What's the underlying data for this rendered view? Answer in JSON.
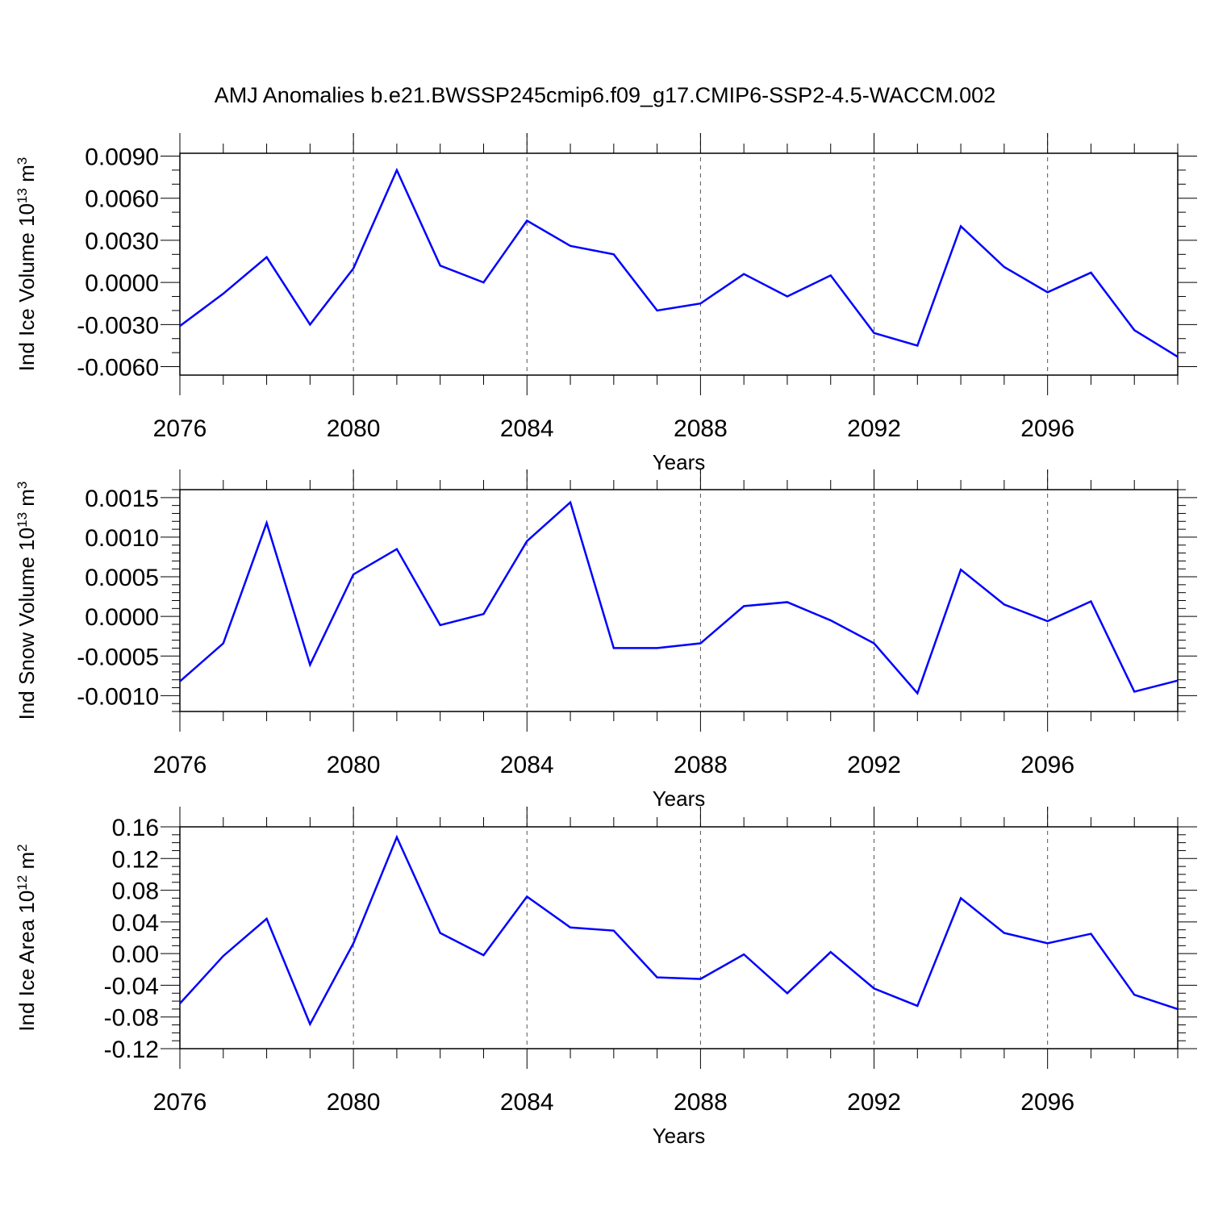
{
  "title": "AMJ Anomalies b.e21.BWSSP245cmip6.f09_g17.CMIP6-SSP2-4.5-WACCM.002",
  "colors": {
    "line": "#0000ff",
    "axis": "#000000",
    "grid": "#555555"
  },
  "chart_data": [
    {
      "type": "line",
      "ylabel": "Ind Ice Volume 10",
      "ylabel_exp": "13",
      "ylabel_unit": " m",
      "ylabel_unit_exp": "3",
      "xlabel": "Years",
      "xlim": [
        2076,
        2099
      ],
      "ylim": [
        -0.0066,
        0.0092
      ],
      "yticks": [
        -0.006,
        -0.003,
        0.0,
        0.003,
        0.006,
        0.009
      ],
      "ytick_labels": [
        "-0.0060",
        "-0.0030",
        "0.0000",
        "0.0030",
        "0.0060",
        "0.0090"
      ],
      "yminor_step": 0.001,
      "xticks": [
        2076,
        2080,
        2084,
        2088,
        2092,
        2096
      ],
      "xtick_labels": [
        "2076",
        "2080",
        "2084",
        "2088",
        "2092",
        "2096"
      ],
      "x": [
        2076,
        2077,
        2078,
        2079,
        2080,
        2081,
        2082,
        2083,
        2084,
        2085,
        2086,
        2087,
        2088,
        2089,
        2090,
        2091,
        2092,
        2093,
        2094,
        2095,
        2096,
        2097,
        2098,
        2099
      ],
      "y": [
        -0.0031,
        -0.0008,
        0.0018,
        -0.003,
        0.001,
        0.008,
        0.0012,
        0.0,
        0.0044,
        0.0026,
        0.002,
        -0.002,
        -0.0015,
        0.0006,
        -0.001,
        0.0005,
        -0.0036,
        -0.0045,
        0.004,
        0.0011,
        -0.0007,
        0.0007,
        -0.0034,
        -0.0053
      ]
    },
    {
      "type": "line",
      "ylabel": "Ind Snow Volume 10",
      "ylabel_exp": "13",
      "ylabel_unit": " m",
      "ylabel_unit_exp": "3",
      "xlabel": "Years",
      "xlim": [
        2076,
        2099
      ],
      "ylim": [
        -0.0012,
        0.0016
      ],
      "yticks": [
        -0.001,
        -0.0005,
        0.0,
        0.0005,
        0.001,
        0.0015
      ],
      "ytick_labels": [
        "-0.0010",
        "-0.0005",
        "0.0000",
        "0.0005",
        "0.0010",
        "0.0015"
      ],
      "yminor_step": 0.0001,
      "xticks": [
        2076,
        2080,
        2084,
        2088,
        2092,
        2096
      ],
      "xtick_labels": [
        "2076",
        "2080",
        "2084",
        "2088",
        "2092",
        "2096"
      ],
      "x": [
        2076,
        2077,
        2078,
        2079,
        2080,
        2081,
        2082,
        2083,
        2084,
        2085,
        2086,
        2087,
        2088,
        2089,
        2090,
        2091,
        2092,
        2093,
        2094,
        2095,
        2096,
        2097,
        2098,
        2099
      ],
      "y": [
        -0.00082,
        -0.00034,
        0.00118,
        -0.00061,
        0.00053,
        0.00085,
        -0.00011,
        3e-05,
        0.00095,
        0.00144,
        -0.0004,
        -0.0004,
        -0.00034,
        0.00013,
        0.00018,
        -5e-05,
        -0.00034,
        -0.00097,
        0.00059,
        0.00015,
        -6e-05,
        0.00019,
        -0.00095,
        -0.00081
      ]
    },
    {
      "type": "line",
      "ylabel": "Ind Ice Area 10",
      "ylabel_exp": "12",
      "ylabel_unit": " m",
      "ylabel_unit_exp": "2",
      "xlabel": "Years",
      "xlim": [
        2076,
        2099
      ],
      "ylim": [
        -0.12,
        0.16
      ],
      "yticks": [
        -0.12,
        -0.08,
        -0.04,
        0.0,
        0.04,
        0.08,
        0.12,
        0.16
      ],
      "ytick_labels": [
        "-0.12",
        "-0.08",
        "-0.04",
        "0.00",
        "0.04",
        "0.08",
        "0.12",
        "0.16"
      ],
      "yminor_step": 0.01,
      "xticks": [
        2076,
        2080,
        2084,
        2088,
        2092,
        2096
      ],
      "xtick_labels": [
        "2076",
        "2080",
        "2084",
        "2088",
        "2092",
        "2096"
      ],
      "x": [
        2076,
        2077,
        2078,
        2079,
        2080,
        2081,
        2082,
        2083,
        2084,
        2085,
        2086,
        2087,
        2088,
        2089,
        2090,
        2091,
        2092,
        2093,
        2094,
        2095,
        2096,
        2097,
        2098,
        2099
      ],
      "y": [
        -0.063,
        -0.003,
        0.044,
        -0.089,
        0.013,
        0.147,
        0.026,
        -0.002,
        0.072,
        0.033,
        0.029,
        -0.03,
        -0.032,
        -0.001,
        -0.05,
        0.002,
        -0.044,
        -0.066,
        0.07,
        0.026,
        0.013,
        0.025,
        -0.052,
        -0.07
      ]
    }
  ]
}
